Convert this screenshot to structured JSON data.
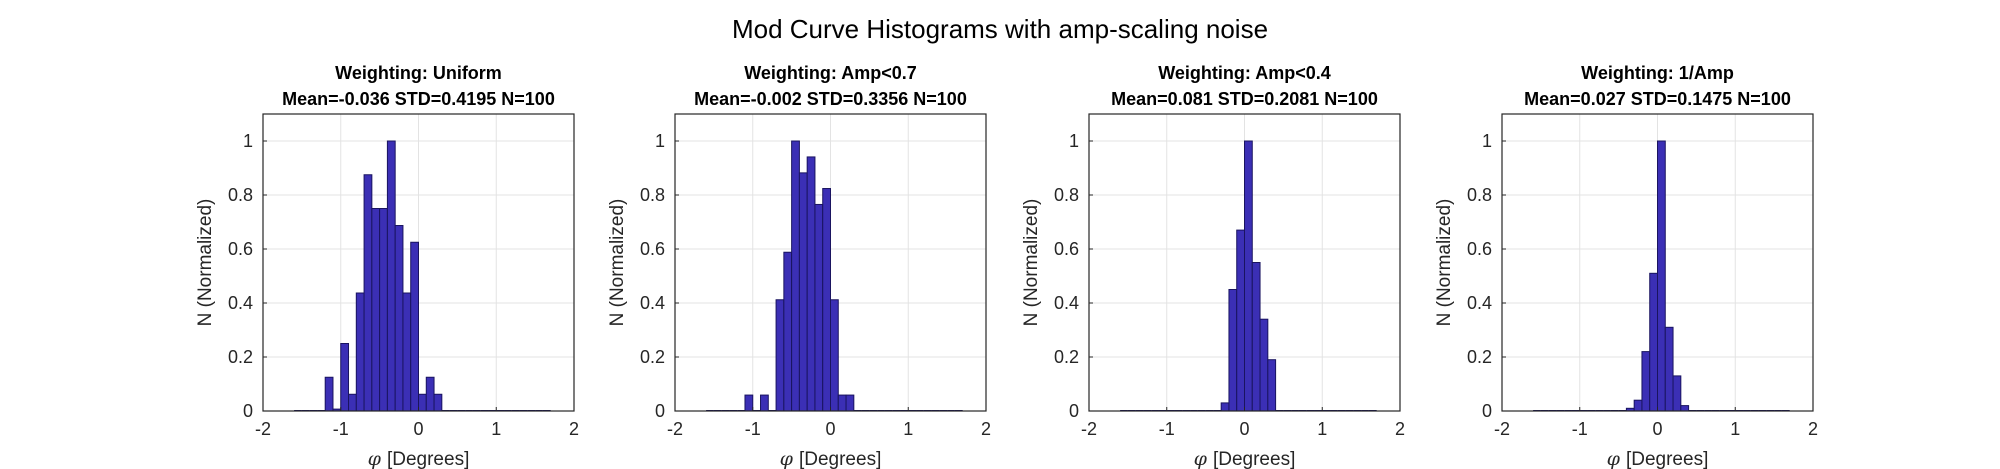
{
  "figure": {
    "title": "Mod Curve Histograms with amp-scaling noise"
  },
  "colors": {
    "bar_fill": "#3b2fb5",
    "bar_edge": "#1a1460",
    "grid": "#e3e3e3",
    "axis": "#262626"
  },
  "chart_data": [
    {
      "type": "bar",
      "title_line1": "Weighting: Uniform",
      "title_line2": "Mean=-0.036 STD=0.4195 N=100",
      "xlabel_symbol": "φ",
      "xlabel_text": "[Degrees]",
      "ylabel": "N (Normalized)",
      "xlim": [
        -2,
        2
      ],
      "ylim": [
        0,
        1.1
      ],
      "xticks": [
        "-2",
        "-1",
        "0",
        "1",
        "2"
      ],
      "yticks": [
        "0",
        "0.2",
        "0.4",
        "0.6",
        "0.8",
        "1"
      ],
      "grid": true,
      "bin_width": 0.1,
      "bin_centers": [
        -1.55,
        -1.45,
        -1.35,
        -1.25,
        -1.15,
        -1.05,
        -0.95,
        -0.85,
        -0.75,
        -0.65,
        -0.55,
        -0.45,
        -0.35,
        -0.25,
        -0.15,
        -0.05,
        0.05,
        0.15,
        0.25,
        0.35,
        0.45,
        0.55,
        0.65,
        0.75,
        0.85,
        0.95,
        1.05,
        1.15,
        1.25,
        1.35,
        1.45,
        1.55,
        1.65
      ],
      "values": [
        0,
        0,
        0,
        0,
        0.125,
        0.007,
        0.25,
        0.062,
        0.437,
        0.875,
        0.75,
        0.75,
        1.0,
        0.687,
        0.437,
        0.625,
        0.062,
        0.125,
        0.062,
        0,
        0,
        0,
        0,
        0,
        0,
        0,
        0,
        0,
        0,
        0,
        0,
        0,
        0
      ]
    },
    {
      "type": "bar",
      "title_line1": "Weighting: Amp<0.7",
      "title_line2": "Mean=-0.002 STD=0.3356 N=100",
      "xlabel_symbol": "φ",
      "xlabel_text": "[Degrees]",
      "ylabel": "N (Normalized)",
      "xlim": [
        -2,
        2
      ],
      "ylim": [
        0,
        1.1
      ],
      "xticks": [
        "-2",
        "-1",
        "0",
        "1",
        "2"
      ],
      "yticks": [
        "0",
        "0.2",
        "0.4",
        "0.6",
        "0.8",
        "1"
      ],
      "grid": true,
      "bin_width": 0.1,
      "bin_centers": [
        -1.55,
        -1.45,
        -1.35,
        -1.25,
        -1.15,
        -1.05,
        -0.95,
        -0.85,
        -0.75,
        -0.65,
        -0.55,
        -0.45,
        -0.35,
        -0.25,
        -0.15,
        -0.05,
        0.05,
        0.15,
        0.25,
        0.35,
        0.45,
        0.55,
        0.65,
        0.75,
        0.85,
        0.95,
        1.05,
        1.15,
        1.25,
        1.35,
        1.45,
        1.55,
        1.65
      ],
      "values": [
        0,
        0,
        0,
        0,
        0,
        0.059,
        0,
        0.059,
        0,
        0.412,
        0.588,
        1.0,
        0.882,
        0.941,
        0.765,
        0.824,
        0.412,
        0.059,
        0.059,
        0,
        0,
        0,
        0,
        0,
        0,
        0,
        0,
        0,
        0,
        0,
        0,
        0,
        0
      ]
    },
    {
      "type": "bar",
      "title_line1": "Weighting: Amp<0.4",
      "title_line2": "Mean=0.081 STD=0.2081 N=100",
      "xlabel_symbol": "φ",
      "xlabel_text": "[Degrees]",
      "ylabel": "N (Normalized)",
      "xlim": [
        -2,
        2
      ],
      "ylim": [
        0,
        1.1
      ],
      "xticks": [
        "-2",
        "-1",
        "0",
        "1",
        "2"
      ],
      "yticks": [
        "0",
        "0.2",
        "0.4",
        "0.6",
        "0.8",
        "1"
      ],
      "grid": true,
      "bin_width": 0.1,
      "bin_centers": [
        -1.55,
        -1.45,
        -1.35,
        -1.25,
        -1.15,
        -1.05,
        -0.95,
        -0.85,
        -0.75,
        -0.65,
        -0.55,
        -0.45,
        -0.35,
        -0.25,
        -0.15,
        -0.05,
        0.05,
        0.15,
        0.25,
        0.35,
        0.45,
        0.55,
        0.65,
        0.75,
        0.85,
        0.95,
        1.05,
        1.15,
        1.25,
        1.35,
        1.45,
        1.55,
        1.65
      ],
      "values": [
        0,
        0,
        0,
        0,
        0,
        0,
        0,
        0,
        0,
        0,
        0,
        0,
        0,
        0.03,
        0.45,
        0.67,
        1.0,
        0.55,
        0.34,
        0.19,
        0,
        0,
        0,
        0,
        0,
        0,
        0,
        0,
        0,
        0,
        0,
        0,
        0
      ]
    },
    {
      "type": "bar",
      "title_line1": "Weighting: 1/Amp",
      "title_line2": "Mean=0.027 STD=0.1475 N=100",
      "xlabel_symbol": "φ",
      "xlabel_text": "[Degrees]",
      "ylabel": "N (Normalized)",
      "xlim": [
        -2,
        2
      ],
      "ylim": [
        0,
        1.1
      ],
      "xticks": [
        "-2",
        "-1",
        "0",
        "1",
        "2"
      ],
      "yticks": [
        "0",
        "0.2",
        "0.4",
        "0.6",
        "0.8",
        "1"
      ],
      "grid": true,
      "bin_width": 0.1,
      "bin_centers": [
        -1.55,
        -1.45,
        -1.35,
        -1.25,
        -1.15,
        -1.05,
        -0.95,
        -0.85,
        -0.75,
        -0.65,
        -0.55,
        -0.45,
        -0.35,
        -0.25,
        -0.15,
        -0.05,
        0.05,
        0.15,
        0.25,
        0.35,
        0.45,
        0.55,
        0.65,
        0.75,
        0.85,
        0.95,
        1.05,
        1.15,
        1.25,
        1.35,
        1.45,
        1.55,
        1.65
      ],
      "values": [
        0,
        0,
        0,
        0,
        0,
        0,
        0,
        0,
        0,
        0,
        0,
        0,
        0.01,
        0.04,
        0.22,
        0.51,
        1.0,
        0.31,
        0.13,
        0.02,
        0,
        0,
        0,
        0,
        0,
        0,
        0,
        0,
        0,
        0,
        0,
        0,
        0
      ]
    }
  ]
}
